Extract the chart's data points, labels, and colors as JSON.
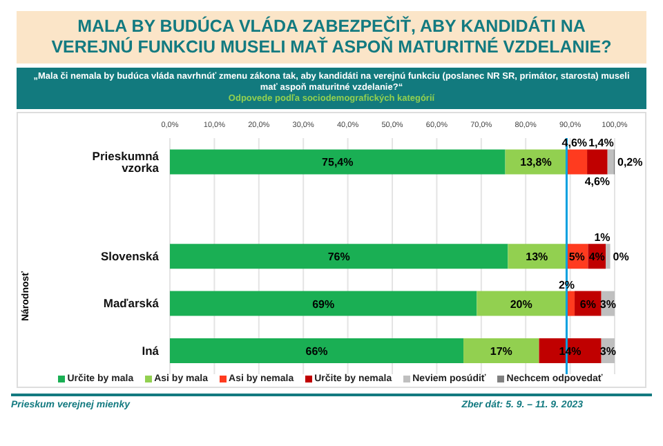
{
  "chart_data": {
    "type": "bar",
    "orientation": "horizontal",
    "stacked": true,
    "title": "MALA BY BUDÚCA VLÁDA ZABEZPEČIŤ, ABY KANDIDÁTI NA VEREJNÚ FUNKCIU MUSELI MAŤ ASPOŇ MATURITNÉ VZDELANIE?",
    "subtitle": "„Mala či nemala by budúca vláda navrhnúť zmenu zákona tak, aby kandidáti na verejnú funkciu (poslanec NR SR, primátor, starosta) museli mať aspoň maturitné vzdelanie?“",
    "annotations": [
      "Odpovede podľa sociodemografických kategórií",
      "Národnosť",
      "Prieskum verejnej mienky",
      "Zber dát: 5. 9. – 11. 9. 2023"
    ],
    "categories": [
      "Prieskumná vzorka",
      null,
      "Slovenská",
      "Maďarská",
      "Iná"
    ],
    "series": [
      {
        "name": "Určite by mala",
        "color": "#1aaf54",
        "values": [
          75.4,
          null,
          76,
          69,
          66
        ],
        "value_labels": [
          "75,4%",
          null,
          "76%",
          "69%",
          "66%"
        ]
      },
      {
        "name": "Asi by mala",
        "color": "#92d050",
        "values": [
          13.8,
          null,
          13,
          20,
          17
        ],
        "value_labels": [
          "13,8%",
          null,
          "13%",
          "20%",
          "17%"
        ]
      },
      {
        "name": "Asi by nemala",
        "color": "#ff3b1f",
        "values": [
          4.6,
          null,
          5,
          2,
          0
        ],
        "value_labels": [
          "4,6%",
          null,
          "5%",
          "2%",
          null
        ]
      },
      {
        "name": "Určite by nemala",
        "color": "#c00000",
        "values": [
          4.6,
          null,
          4,
          6,
          14
        ],
        "value_labels": [
          "4,6%",
          null,
          "4%",
          "6%",
          "14%"
        ]
      },
      {
        "name": "Neviem posúdiť",
        "color": "#bfbfbf",
        "values": [
          1.4,
          null,
          1,
          3,
          3
        ],
        "value_labels": [
          "1,4%",
          null,
          "1%",
          "3%",
          "3%"
        ]
      },
      {
        "name": "Nechcem odpovedať",
        "color": "#808080",
        "values": [
          0.2,
          null,
          0,
          0,
          0
        ],
        "value_labels": [
          "0,2%",
          null,
          "0%",
          null,
          null
        ]
      }
    ],
    "xlim": [
      0,
      100
    ],
    "xticks": [
      {
        "value": 0,
        "label": "0,0%"
      },
      {
        "value": 10,
        "label": "10,0%"
      },
      {
        "value": 20,
        "label": "20,0%"
      },
      {
        "value": 30,
        "label": "30,0%"
      },
      {
        "value": 40,
        "label": "40,0%"
      },
      {
        "value": 50,
        "label": "50,0%"
      },
      {
        "value": 60,
        "label": "60,0%"
      },
      {
        "value": 70,
        "label": "70,0%"
      },
      {
        "value": 80,
        "label": "80,0%"
      },
      {
        "value": 90,
        "label": "90,0%"
      },
      {
        "value": 100,
        "label": "100,0%"
      }
    ],
    "ref_lines": [
      {
        "axis": "x",
        "value": 89.2,
        "color": "#00a0e0"
      }
    ],
    "grid": "x",
    "legend": "bottom"
  }
}
